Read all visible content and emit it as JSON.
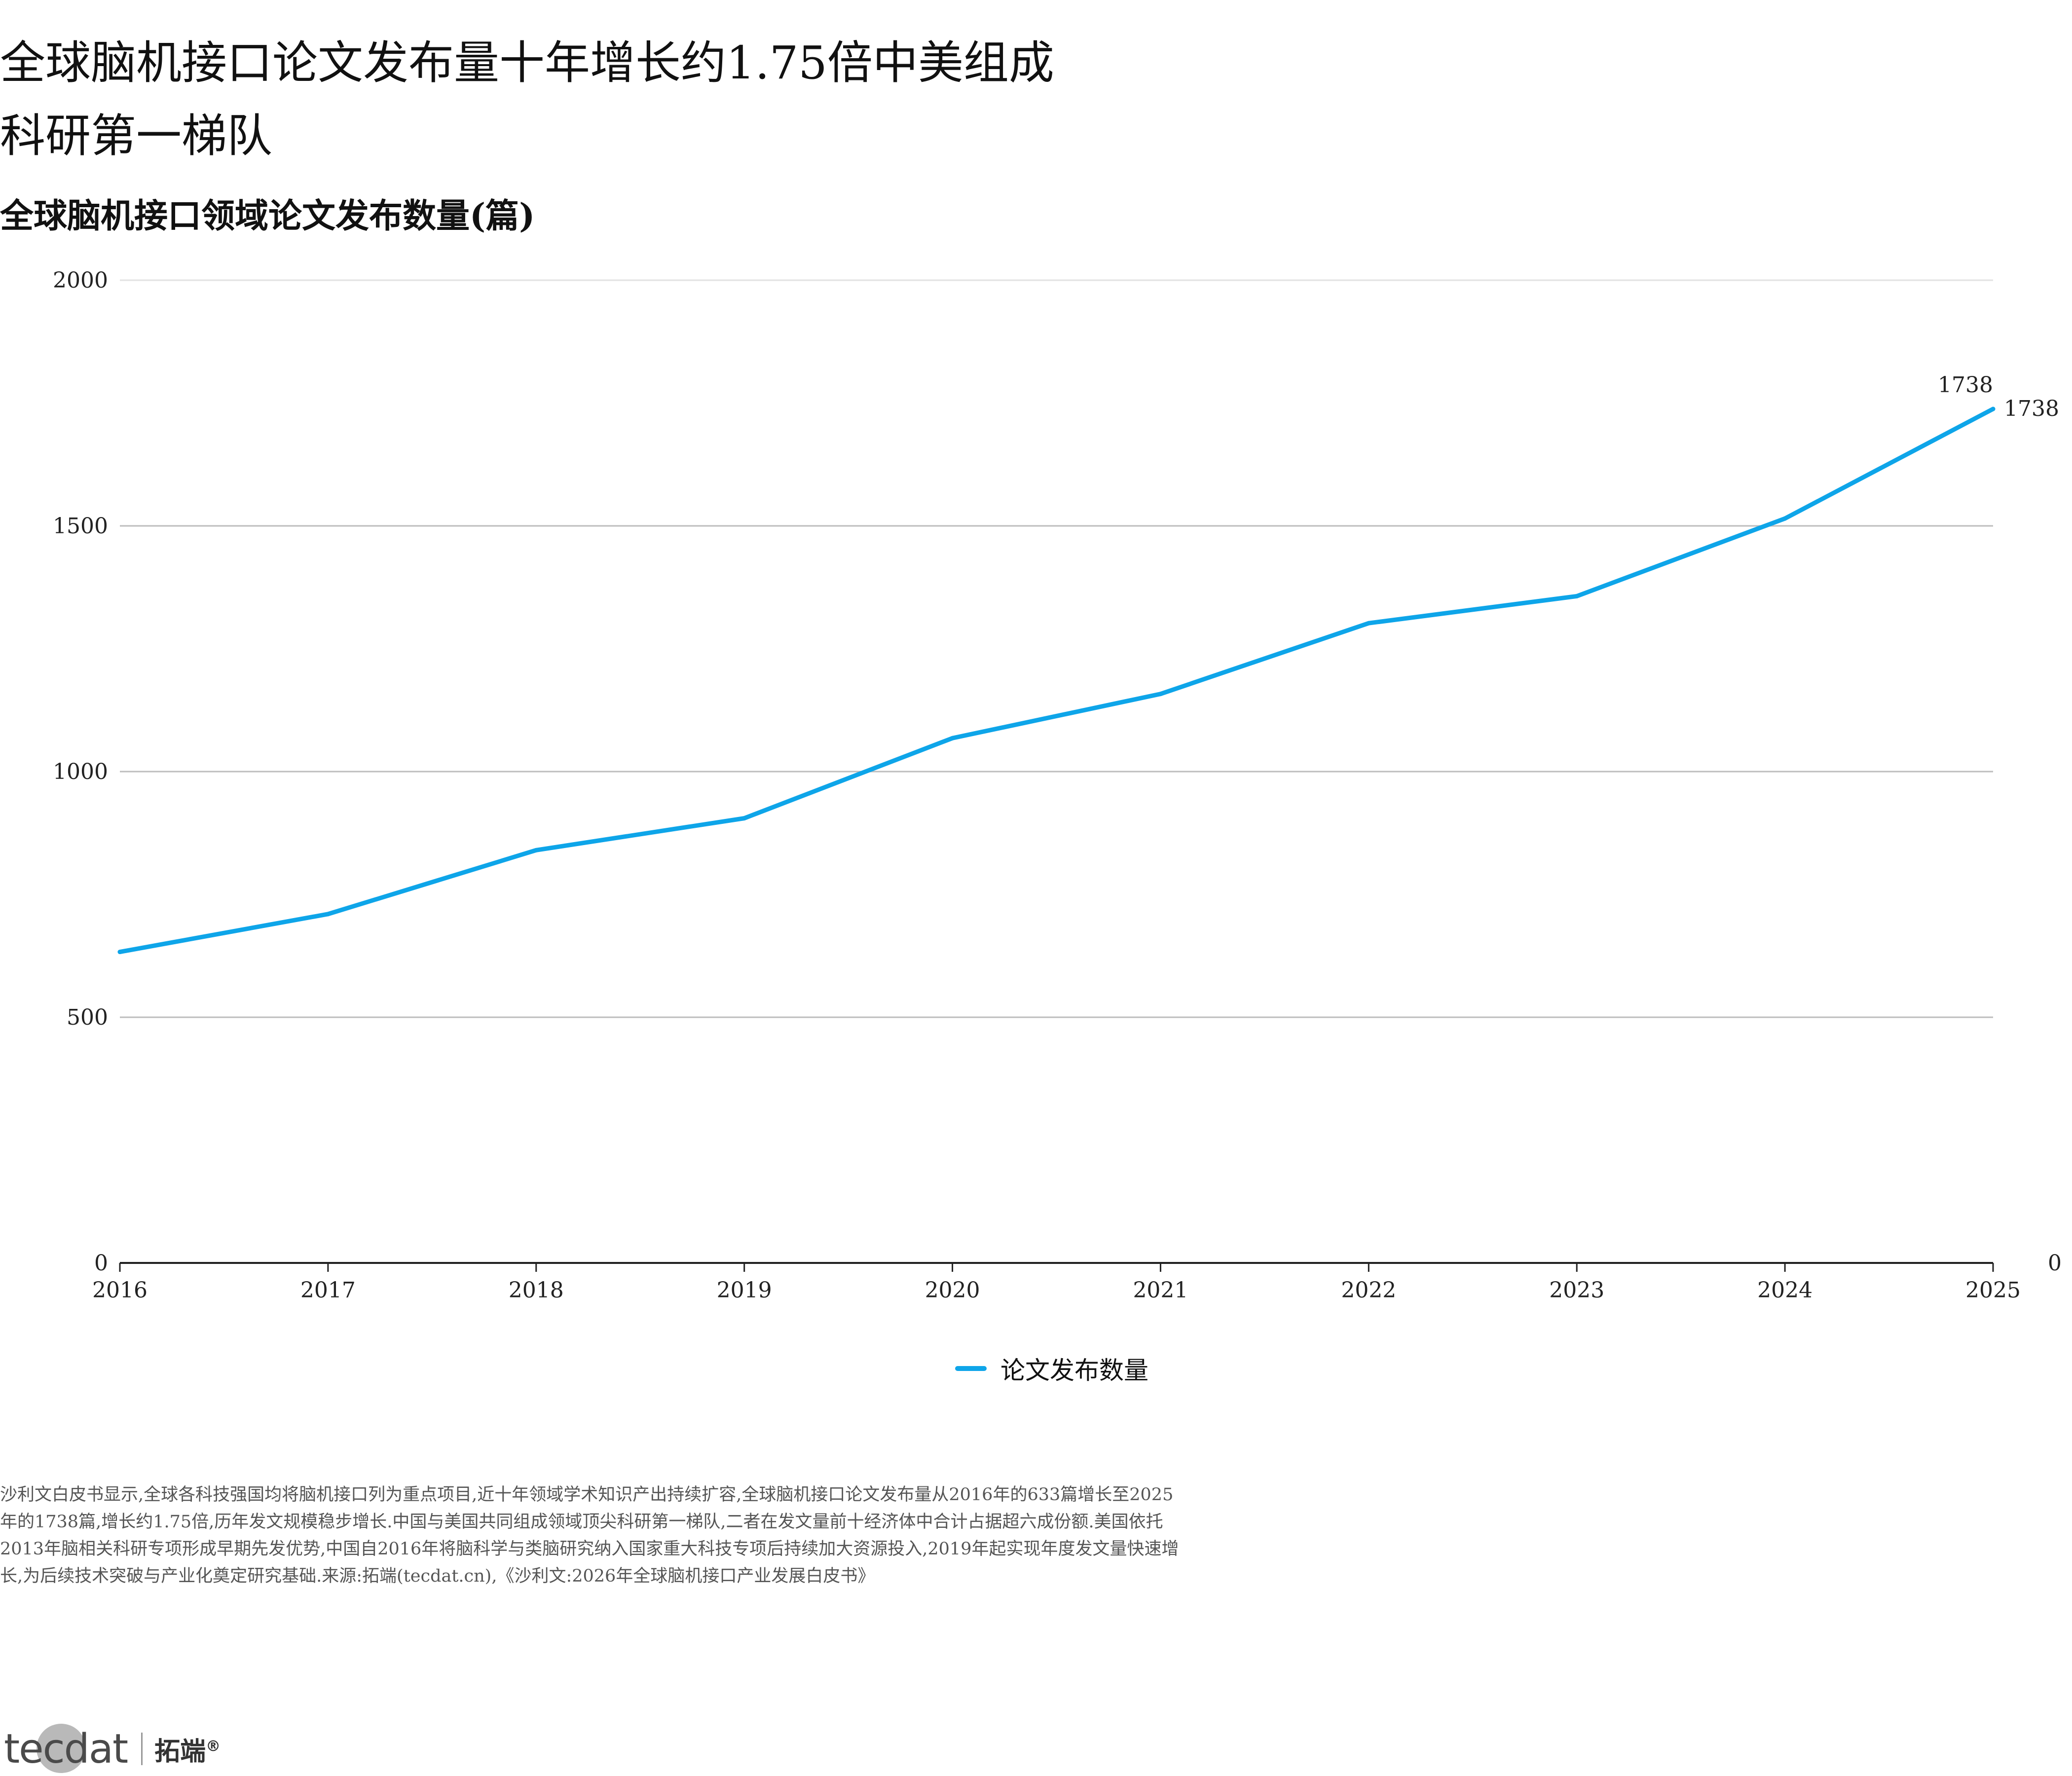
{
  "headline": {
    "line1": "全球脑机接口论文发布量十年增长约1.75倍中美组成",
    "line2": "科研第一梯队"
  },
  "chart_data": {
    "type": "line",
    "title": "全球脑机接口领域论文发布数量(篇)",
    "x": [
      "2016",
      "2017",
      "2018",
      "2019",
      "2020",
      "2021",
      "2022",
      "2023",
      "2024",
      "2025"
    ],
    "series": [
      {
        "name": "论文发布数量",
        "color": "#0ea5e9",
        "values": [
          633,
          710,
          840,
          905,
          1068,
          1158,
          1302,
          1357,
          1515,
          1738
        ]
      }
    ],
    "ylim": [
      0,
      2000
    ],
    "yticks": [
      0,
      500,
      1000,
      1500,
      2000
    ],
    "right_axis_label": "0",
    "end_labels": [
      "1738",
      "1738"
    ],
    "grid": true,
    "legend_position": "bottom-center"
  },
  "legend": {
    "label": "论文发布数量"
  },
  "note": "沙利文白皮书显示,全球各科技强国均将脑机接口列为重点项目,近十年领域学术知识产出持续扩容,全球脑机接口论文发布量从2016年的633篇增长至2025年的1738篇,增长约1.75倍,历年发文规模稳步增长.中国与美国共同组成领域顶尖科研第一梯队,二者在发文量前十经济体中合计占据超六成份额.美国依托2013年脑相关科研专项形成早期先发优势,中国自2016年将脑科学与类脑研究纳入国家重大科技专项后持续加大资源投入,2019年起实现年度发文量快速增长,为后续技术突破与产业化奠定研究基础.来源:拓端(tecdat.cn),《沙利文:2026年全球脑机接口产业发展白皮书》",
  "logo": {
    "en": "tecdat",
    "cn": "拓端",
    "reg": "®"
  }
}
